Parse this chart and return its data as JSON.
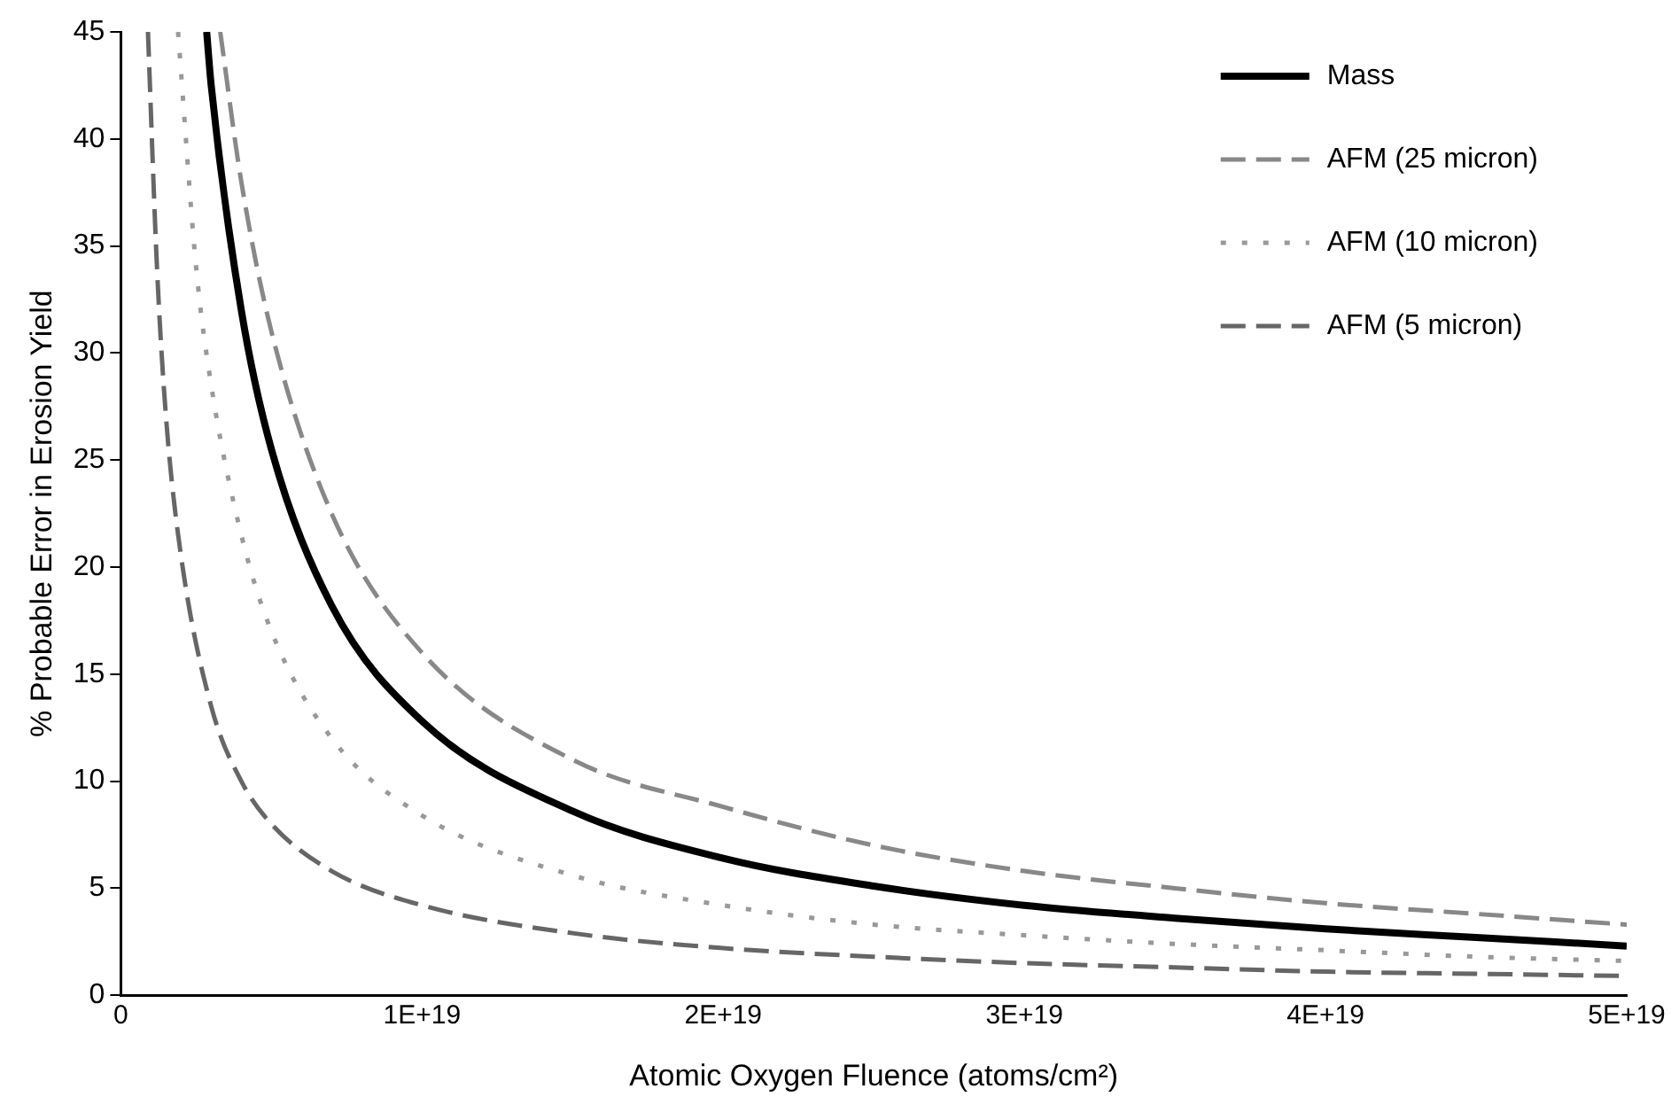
{
  "chart_data": {
    "type": "line",
    "xlabel": "Atomic Oxygen Fluence (atoms/cm²)",
    "ylabel": "% Probable Error in Erosion Yield",
    "xlim": [
      0,
      5e+19
    ],
    "xticks": [
      0,
      {
        "value": 1e+19,
        "label": "1E+19"
      },
      {
        "value": 2e+19,
        "label": "2E+19"
      },
      {
        "value": 3e+19,
        "label": "3E+19"
      },
      {
        "value": 4e+19,
        "label": "4E+19"
      },
      {
        "value": 5e+19,
        "label": "5E+19"
      }
    ],
    "ylim": [
      0,
      45
    ],
    "yticks": [
      0,
      5,
      10,
      15,
      20,
      25,
      30,
      35,
      40,
      45
    ],
    "grid": false,
    "legend": "top right",
    "marker": "none",
    "series": [
      {
        "name": "Mass",
        "color": "#000000",
        "line_style": "solid",
        "x": [
          2.85e+18,
          3e+18,
          4e+18,
          5e+18,
          7e+18,
          1e+19,
          1.5e+19,
          2e+19,
          2.5e+19,
          3e+19,
          3.5e+19,
          4e+19,
          4.5e+19,
          5e+19
        ],
        "values": [
          45,
          42.5,
          32,
          25.5,
          18.2,
          12.8,
          8.6,
          6.4,
          5.1,
          4.2,
          3.6,
          3.1,
          2.7,
          2.3
        ]
      },
      {
        "name": "AFM (25 micron)",
        "color": "#888888",
        "line_style": "dashed",
        "x": [
          3.3e+18,
          4e+18,
          5e+18,
          7e+18,
          1e+19,
          1.5e+19,
          2e+19,
          2.5e+19,
          3e+19,
          3.5e+19,
          4e+19,
          4.5e+19,
          5e+19
        ],
        "values": [
          45,
          38,
          31,
          22.5,
          16,
          11,
          8.8,
          7,
          5.8,
          5,
          4.3,
          3.8,
          3.3
        ]
      },
      {
        "name": "AFM (10 micron)",
        "color": "#999999",
        "line_style": "dotted",
        "x": [
          1.9e+18,
          2.5e+18,
          3e+18,
          4e+18,
          5e+18,
          7e+18,
          1e+19,
          1.5e+19,
          2e+19,
          2.5e+19,
          3e+19,
          3.5e+19,
          4e+19,
          4.5e+19,
          5e+19
        ],
        "values": [
          45,
          34,
          28.5,
          21.5,
          17,
          12,
          8.4,
          5.6,
          4.2,
          3.3,
          2.8,
          2.4,
          2.1,
          1.8,
          1.6
        ]
      },
      {
        "name": "AFM (5 micron)",
        "color": "#666666",
        "line_style": "dashed",
        "x": [
          9e+17,
          1.2e+18,
          1.5e+18,
          2e+18,
          3e+18,
          4e+18,
          5e+18,
          7e+18,
          1e+19,
          1.5e+19,
          2e+19,
          2.5e+19,
          3e+19,
          3.5e+19,
          4e+19,
          4.5e+19,
          5e+19
        ],
        "values": [
          45,
          34,
          27,
          20.5,
          13.5,
          10,
          8,
          5.8,
          4.2,
          2.9,
          2.2,
          1.8,
          1.5,
          1.3,
          1.1,
          1,
          0.9
        ]
      }
    ]
  }
}
